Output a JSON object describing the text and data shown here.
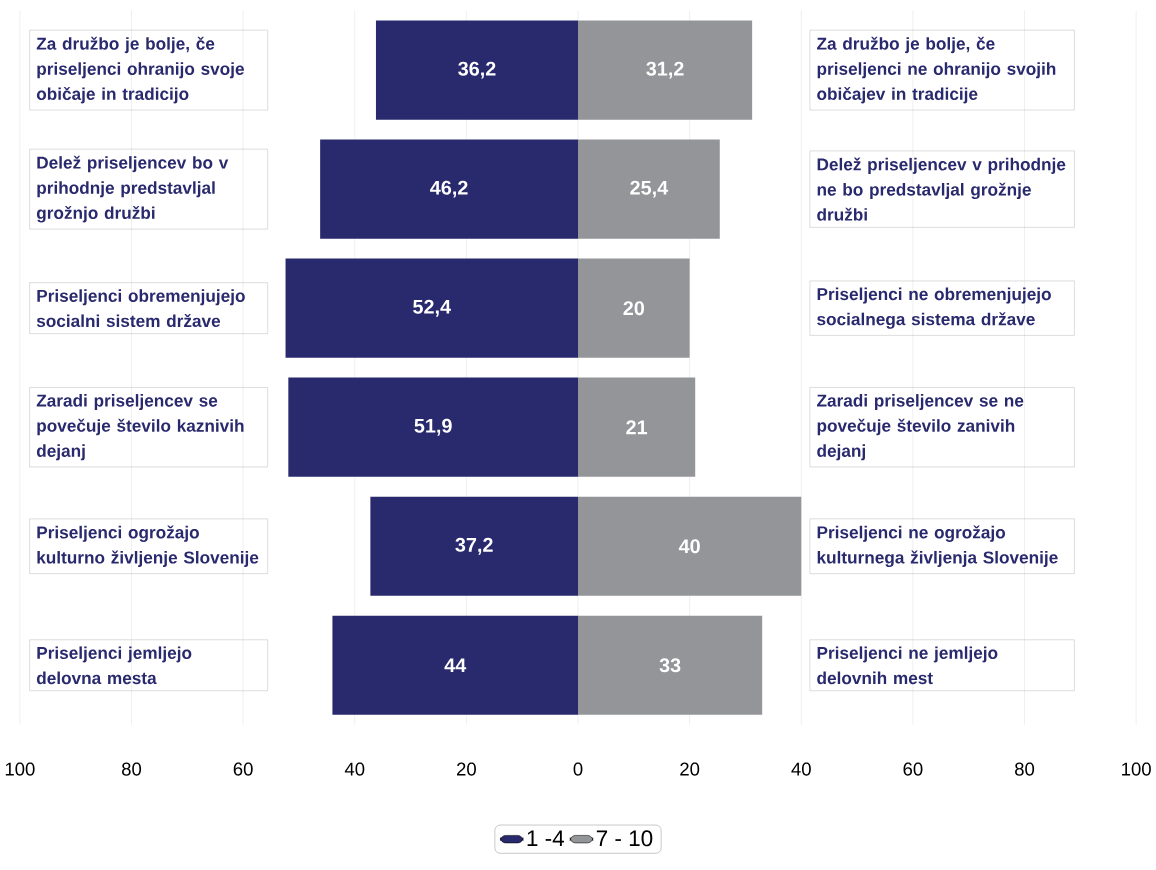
{
  "chart_data": {
    "type": "bar",
    "orientation": "horizontal",
    "categories": [
      "Za družbo je bolje, če priseljenci ohranijo svoje običaje in tradicijo",
      "Delež priseljencev bo v prihodnje predstavljal grožnjo družbi",
      "Priseljenci obremenjujejo socialni sistem države",
      "Zaradi priseljencev se povečuje število kaznivih dejanj",
      "Priseljenci ogrožajo kulturno življenje Slovenije",
      "Priseljenci jemljejo delovna mesta"
    ],
    "series": [
      {
        "name": "1 -4",
        "color": "#29296e",
        "values": [
          36.2,
          46.2,
          52.4,
          51.9,
          37.2,
          44
        ],
        "base": [
          -36.2,
          -46.2,
          -52.4,
          -51.9,
          -37.2,
          -44
        ],
        "value_labels": [
          "36,2",
          "46,2",
          "52,4",
          "51,9",
          "37,2",
          "44"
        ]
      },
      {
        "name": "7 - 10",
        "color": "#939598",
        "values": [
          31.2,
          25.4,
          20,
          21,
          40,
          33
        ],
        "value_labels": [
          "31,2",
          "25,4",
          "20",
          "21",
          "40",
          "33"
        ]
      }
    ],
    "annotations": [
      "Za družbo je bolje, če priseljenci ne ohranijo svojih običajev in tradicije",
      "Delež priseljencev v prihodnje ne bo predstavljal grožnje družbi",
      "Priseljenci ne obremenjujejo socialnega sistema države",
      "Zaradi priseljencev se ne povečuje število zanivih dejanj",
      "Priseljenci ne ogrožajo kulturnega življenja Slovenije",
      "Priseljenci ne jemljejo delovnih mest"
    ],
    "xlim": [
      -100,
      100
    ],
    "xticks": [
      {
        "value": -100,
        "label": "100"
      },
      {
        "value": -80,
        "label": "80"
      },
      {
        "value": -60,
        "label": "60"
      },
      {
        "value": -40,
        "label": "40"
      },
      {
        "value": -20,
        "label": "20"
      },
      0,
      20,
      40,
      60,
      80,
      100
    ],
    "grid": "x",
    "legend": "bottom"
  }
}
